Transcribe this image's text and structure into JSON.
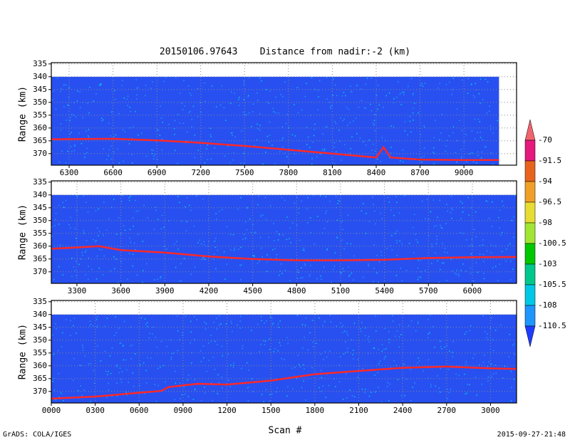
{
  "title": "20150106.97643    Distance from nadir:-2 (km)",
  "x_label": "Scan #",
  "footer_left": "GrADS: COLA/IGES",
  "footer_right": "2015-09-27-21:48",
  "colorbar": {
    "levels": [
      -70,
      -91.5,
      -94,
      -96.5,
      -98,
      -100.5,
      -103,
      -105.5,
      -108,
      -110.5
    ],
    "colors": [
      "#f0646e",
      "#e6197d",
      "#e8641e",
      "#f0a028",
      "#e6dc32",
      "#a0e632",
      "#00c800",
      "#00c88c",
      "#00c8e6",
      "#1e96ff",
      "#1e3cff"
    ]
  },
  "chart_data": [
    {
      "type": "line",
      "y_label": "Range (km)",
      "color": "#ff2828",
      "background": "#2850f0",
      "echo_top": 340,
      "grid": true,
      "xlim": [
        6178,
        9360
      ],
      "ylim": [
        374.5,
        334.5
      ],
      "xticks": [
        6300,
        6600,
        6900,
        7200,
        7500,
        7800,
        8100,
        8400,
        8700,
        9000
      ],
      "yticks": [
        335,
        340,
        345,
        350,
        355,
        360,
        365,
        370
      ],
      "x": [
        6178,
        6600,
        6900,
        7200,
        7500,
        7800,
        8100,
        8300,
        8400,
        8450,
        8500,
        8700,
        9000,
        9240
      ],
      "values": [
        364.4,
        364.2,
        364.8,
        365.8,
        367,
        368.5,
        370,
        371,
        371.5,
        367.5,
        371.5,
        372.3,
        372.5,
        372.5
      ]
    },
    {
      "type": "line",
      "y_label": "Range (km)",
      "color": "#ff2828",
      "background": "#2850f0",
      "echo_top": 340,
      "grid": true,
      "xlim": [
        3125,
        6302
      ],
      "ylim": [
        374.5,
        334.5
      ],
      "xticks": [
        3300,
        3600,
        3900,
        4200,
        4500,
        4800,
        5100,
        5400,
        5700,
        6000
      ],
      "yticks": [
        335,
        340,
        345,
        350,
        355,
        360,
        365,
        370
      ],
      "x": [
        3125,
        3300,
        3450,
        3600,
        3900,
        4200,
        4500,
        4800,
        5100,
        5400,
        5700,
        6000,
        6302
      ],
      "values": [
        361,
        360.5,
        360,
        361.5,
        362.5,
        364,
        365,
        365.5,
        365.5,
        365.3,
        364.6,
        364.3,
        364.2
      ]
    },
    {
      "type": "line",
      "y_label": "Range (km)",
      "color": "#ff2828",
      "background": "#2850f0",
      "echo_top": 340,
      "grid": true,
      "xlim": [
        0,
        3178
      ],
      "ylim": [
        374.5,
        334.5
      ],
      "xticks": [
        {
          "value": 0,
          "label": "0000"
        },
        {
          "value": 300,
          "label": "0300"
        },
        {
          "value": 600,
          "label": "0600"
        },
        {
          "value": 900,
          "label": "0900"
        },
        1200,
        1500,
        1800,
        2100,
        2400,
        2700,
        3000
      ],
      "yticks": [
        335,
        340,
        345,
        350,
        355,
        360,
        365,
        370
      ],
      "x": [
        0,
        300,
        600,
        750,
        800,
        1000,
        1200,
        1500,
        1650,
        1800,
        2100,
        2400,
        2700,
        3000,
        3178
      ],
      "values": [
        372.8,
        372,
        370.5,
        369.8,
        368.3,
        367,
        367.3,
        365.8,
        364.5,
        363.3,
        362,
        360.8,
        360.3,
        361,
        361.2
      ]
    }
  ]
}
